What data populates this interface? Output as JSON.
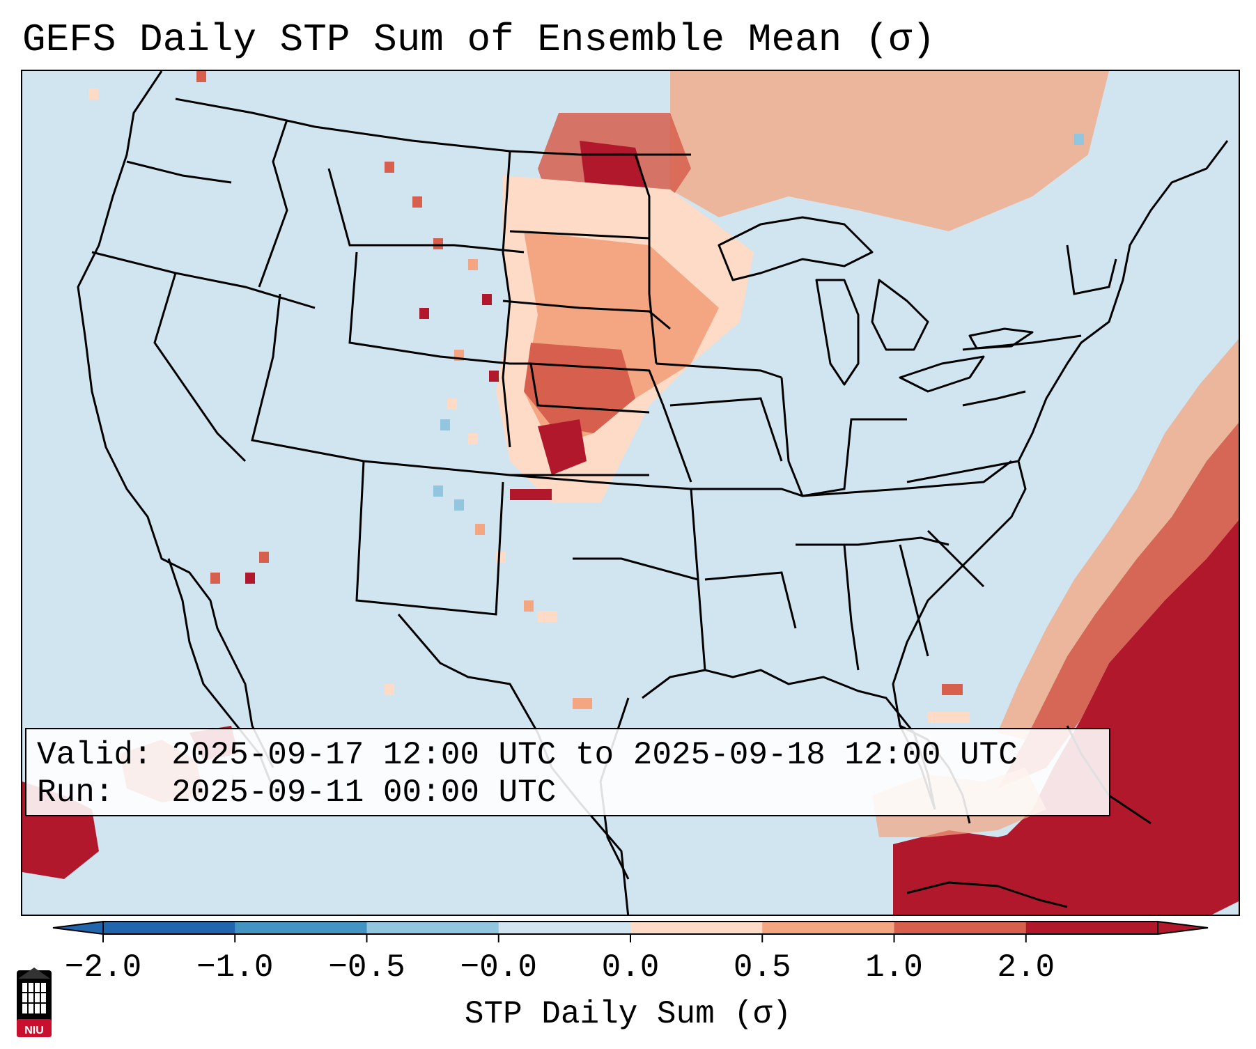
{
  "title": "GEFS Daily STP Sum of Ensemble Mean (σ)",
  "info": {
    "valid_label": "Valid:",
    "valid_value": "2025-09-17 12:00 UTC to 2025-09-18 12:00 UTC",
    "run_label": "Run:",
    "run_value": "2025-09-11 00:00 UTC"
  },
  "colorbar": {
    "label": "STP Daily Sum (σ)",
    "ticks": [
      "−2.0",
      "−1.0",
      "−0.5",
      "−0.0",
      "0.0",
      "0.5",
      "1.0",
      "2.0"
    ],
    "colors": [
      "#2166ac",
      "#4393c3",
      "#92c5de",
      "#d1e5f0",
      "#fddbc7",
      "#f4a582",
      "#d6604d",
      "#b2182b"
    ],
    "background_color": "#d1e5f0"
  },
  "logo": {
    "text": "NIU",
    "icon": "university-tower-icon"
  }
}
